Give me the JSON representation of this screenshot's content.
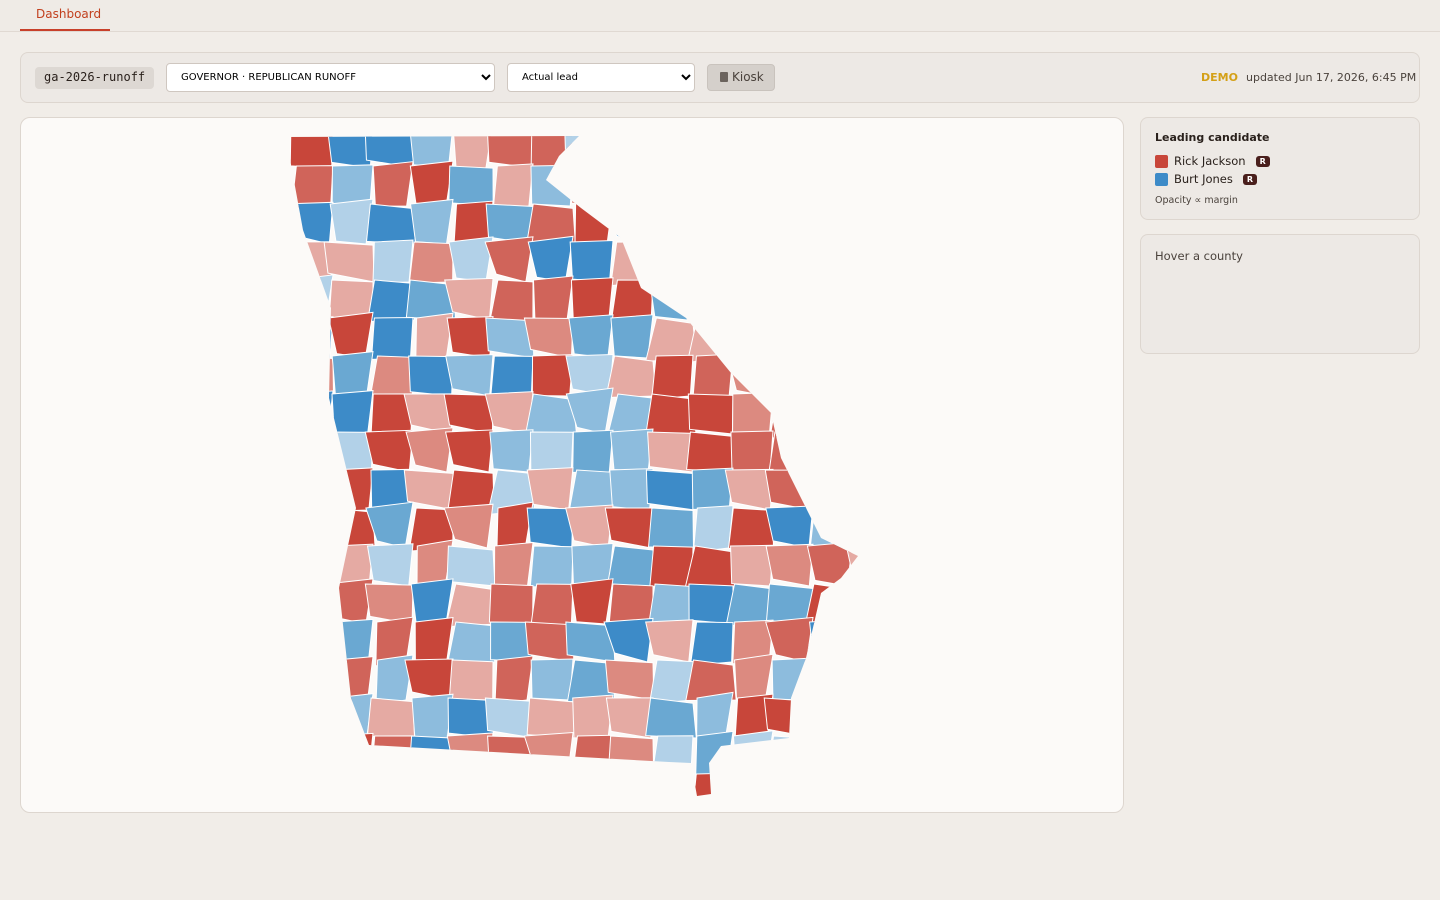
{
  "nav": {
    "tab": "Dashboard"
  },
  "toolbar": {
    "race_id": "ga-2026-runoff",
    "race_select": "GOVERNOR · REPUBLICAN RUNOFF",
    "mode_select": "Actual lead",
    "kiosk_button": "Kiosk",
    "status": "DEMO",
    "updated": "updated Jun 17, 2026, 6:45 PM"
  },
  "legend": {
    "title": "Leading candidate",
    "candidates": [
      {
        "name": "Rick Jackson",
        "party": "R",
        "color": "#c8463a"
      },
      {
        "name": "Burt Jones",
        "party": "R",
        "color": "#3d8bc8"
      }
    ],
    "note": "Opacity ∝ margin"
  },
  "hover_panel": {
    "text": "Hover a county"
  }
}
